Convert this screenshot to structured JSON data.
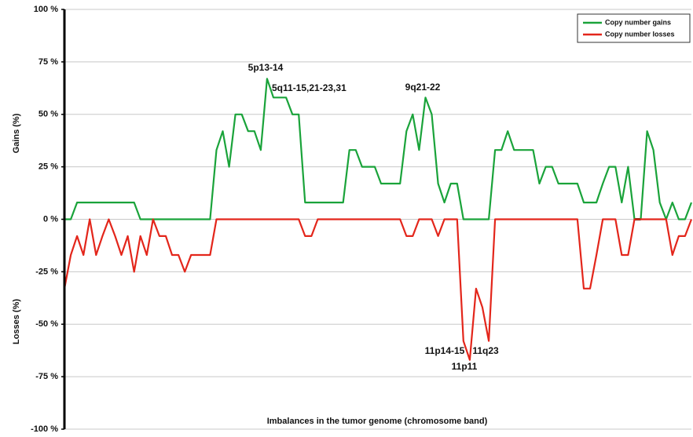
{
  "chart_data": {
    "type": "line",
    "ylabel_top": "Gains (%)",
    "ylabel_bottom": "Losses (%)",
    "xlabel": "Imbalances in the tumor genome (chromosome band)",
    "ylim": [
      -100,
      100
    ],
    "yticks": [
      {
        "value": 100,
        "label": "100 %"
      },
      {
        "value": 75,
        "label": "75 %"
      },
      {
        "value": 50,
        "label": "50 %"
      },
      {
        "value": 25,
        "label": "25 %"
      },
      {
        "value": 0,
        "label": "0 %"
      },
      {
        "value": -25,
        "label": "-25 %"
      },
      {
        "value": -50,
        "label": "-50 %"
      },
      {
        "value": -75,
        "label": "-75 %"
      },
      {
        "value": -100,
        "label": "-100 %"
      }
    ],
    "grid": true,
    "legend": "upper right",
    "annotations": [
      "5p13-14",
      "5q11-15,21-23,31",
      "9q21-22",
      "11p14-15",
      "11q23",
      "11p11"
    ],
    "series": [
      {
        "name": "Copy number gains",
        "color": "#1aa33a",
        "values": [
          0,
          0,
          8,
          8,
          8,
          8,
          8,
          8,
          8,
          8,
          8,
          8,
          0,
          0,
          0,
          0,
          0,
          0,
          0,
          0,
          0,
          0,
          0,
          0,
          33,
          42,
          25,
          50,
          50,
          42,
          42,
          33,
          67,
          58,
          58,
          58,
          50,
          50,
          8,
          8,
          8,
          8,
          8,
          8,
          8,
          33,
          33,
          25,
          25,
          25,
          17,
          17,
          17,
          17,
          42,
          50,
          33,
          58,
          50,
          17,
          8,
          17,
          17,
          0,
          0,
          0,
          0,
          0,
          33,
          33,
          42,
          33,
          33,
          33,
          33,
          17,
          25,
          25,
          17,
          17,
          17,
          17,
          8,
          8,
          8,
          17,
          25,
          25,
          8,
          25,
          0,
          0,
          42,
          33,
          8,
          0,
          8,
          0,
          0,
          8
        ]
      },
      {
        "name": "Copy number losses",
        "color": "#e3261b",
        "values": [
          -33,
          -17,
          -8,
          -17,
          0,
          -17,
          -8,
          0,
          -8,
          -17,
          -8,
          -25,
          -8,
          -17,
          0,
          -8,
          -8,
          -17,
          -17,
          -25,
          -17,
          -17,
          -17,
          -17,
          0,
          0,
          0,
          0,
          0,
          0,
          0,
          0,
          0,
          0,
          0,
          0,
          0,
          0,
          -8,
          -8,
          0,
          0,
          0,
          0,
          0,
          0,
          0,
          0,
          0,
          0,
          0,
          0,
          0,
          0,
          -8,
          -8,
          0,
          0,
          0,
          -8,
          0,
          0,
          0,
          -58,
          -67,
          -33,
          -42,
          -58,
          0,
          0,
          0,
          0,
          0,
          0,
          0,
          0,
          0,
          0,
          0,
          0,
          0,
          0,
          -33,
          -33,
          -17,
          0,
          0,
          0,
          -17,
          -17,
          0,
          0,
          0,
          0,
          0,
          0,
          -17,
          -8,
          -8,
          0
        ]
      }
    ]
  }
}
